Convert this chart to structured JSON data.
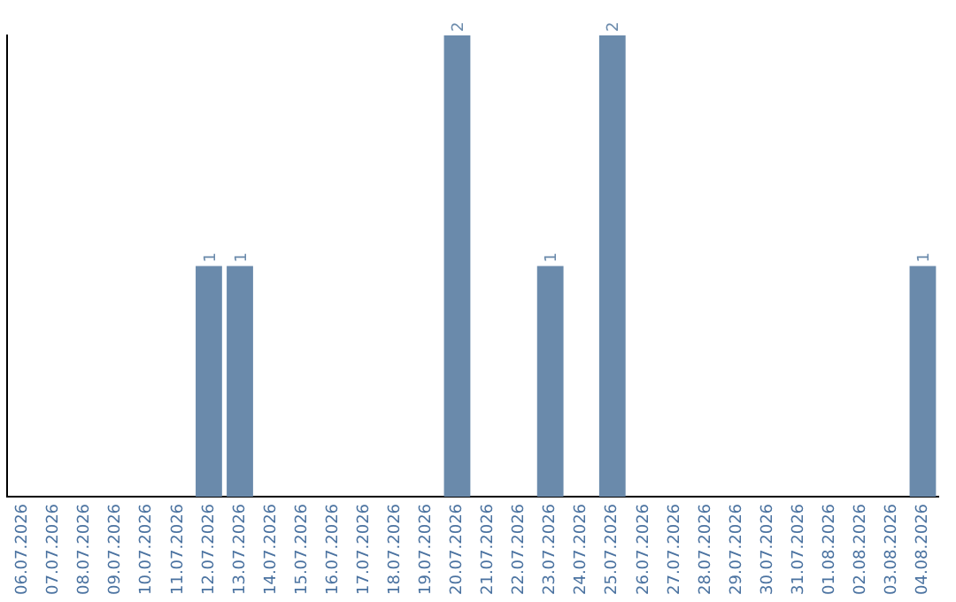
{
  "chart_data": {
    "type": "bar",
    "categories": [
      "06.07.2026",
      "07.07.2026",
      "08.07.2026",
      "09.07.2026",
      "10.07.2026",
      "11.07.2026",
      "12.07.2026",
      "13.07.2026",
      "14.07.2026",
      "15.07.2026",
      "16.07.2026",
      "17.07.2026",
      "18.07.2026",
      "19.07.2026",
      "20.07.2026",
      "21.07.2026",
      "22.07.2026",
      "23.07.2026",
      "24.07.2026",
      "25.07.2026",
      "26.07.2026",
      "27.07.2026",
      "28.07.2026",
      "29.07.2026",
      "30.07.2026",
      "31.07.2026",
      "01.08.2026",
      "02.08.2026",
      "03.08.2026",
      "04.08.2026"
    ],
    "values": [
      0,
      0,
      0,
      0,
      0,
      0,
      1,
      1,
      0,
      0,
      0,
      0,
      0,
      0,
      2,
      0,
      0,
      1,
      0,
      2,
      0,
      0,
      0,
      0,
      0,
      0,
      0,
      0,
      0,
      1
    ],
    "value_labels": [
      null,
      null,
      null,
      null,
      null,
      null,
      "1",
      "1",
      null,
      null,
      null,
      null,
      null,
      null,
      "2",
      null,
      null,
      "1",
      null,
      "2",
      null,
      null,
      null,
      null,
      null,
      null,
      null,
      null,
      null,
      "1"
    ],
    "color": "#6a8aab",
    "tick_labels": "x",
    "grid": false,
    "legend": false
  }
}
